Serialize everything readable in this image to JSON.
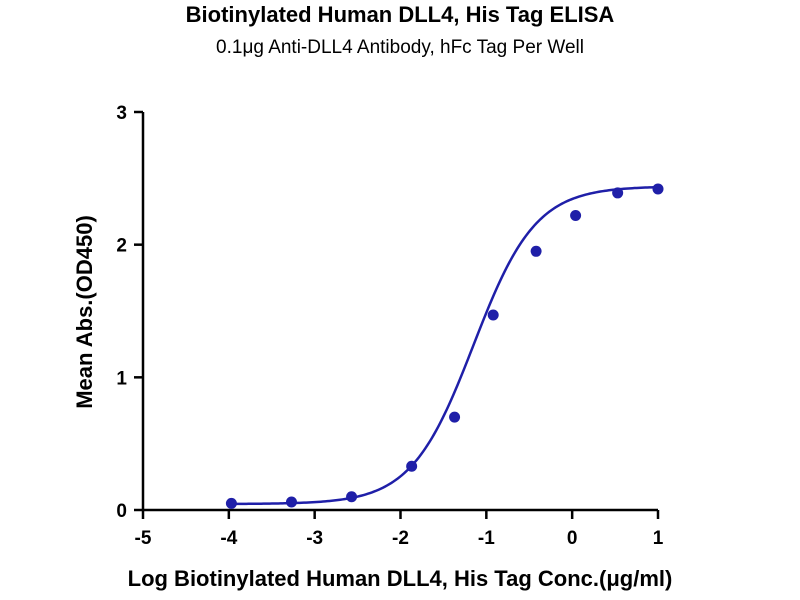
{
  "chart_data": {
    "type": "scatter",
    "title": "Biotinylated Human DLL4, His Tag ELISA",
    "subtitle": "0.1μg Anti-DLL4 Antibody, hFc Tag Per Well",
    "xlabel": "Log Biotinylated Human DLL4, His Tag Conc.(μg/ml)",
    "ylabel": "Mean Abs.(OD450)",
    "xlim": [
      -5,
      1
    ],
    "ylim": [
      0,
      3
    ],
    "x_ticks": [
      "-5",
      "-4",
      "-3",
      "-2",
      "-1",
      "0",
      "1"
    ],
    "y_ticks": [
      "0",
      "1",
      "2",
      "3"
    ],
    "series": [
      {
        "x": [
          -3.97,
          -3.27,
          -2.57,
          -1.87,
          -1.37,
          -0.92,
          -0.42,
          0.04,
          0.53,
          1.0
        ],
        "y": [
          0.05,
          0.06,
          0.1,
          0.33,
          0.7,
          1.47,
          1.95,
          2.22,
          2.39,
          2.42
        ],
        "fit": "four-parameter logistic curve"
      }
    ],
    "grid": false,
    "colors": {
      "series": "#1f1fa8",
      "axis": "#000000"
    }
  }
}
